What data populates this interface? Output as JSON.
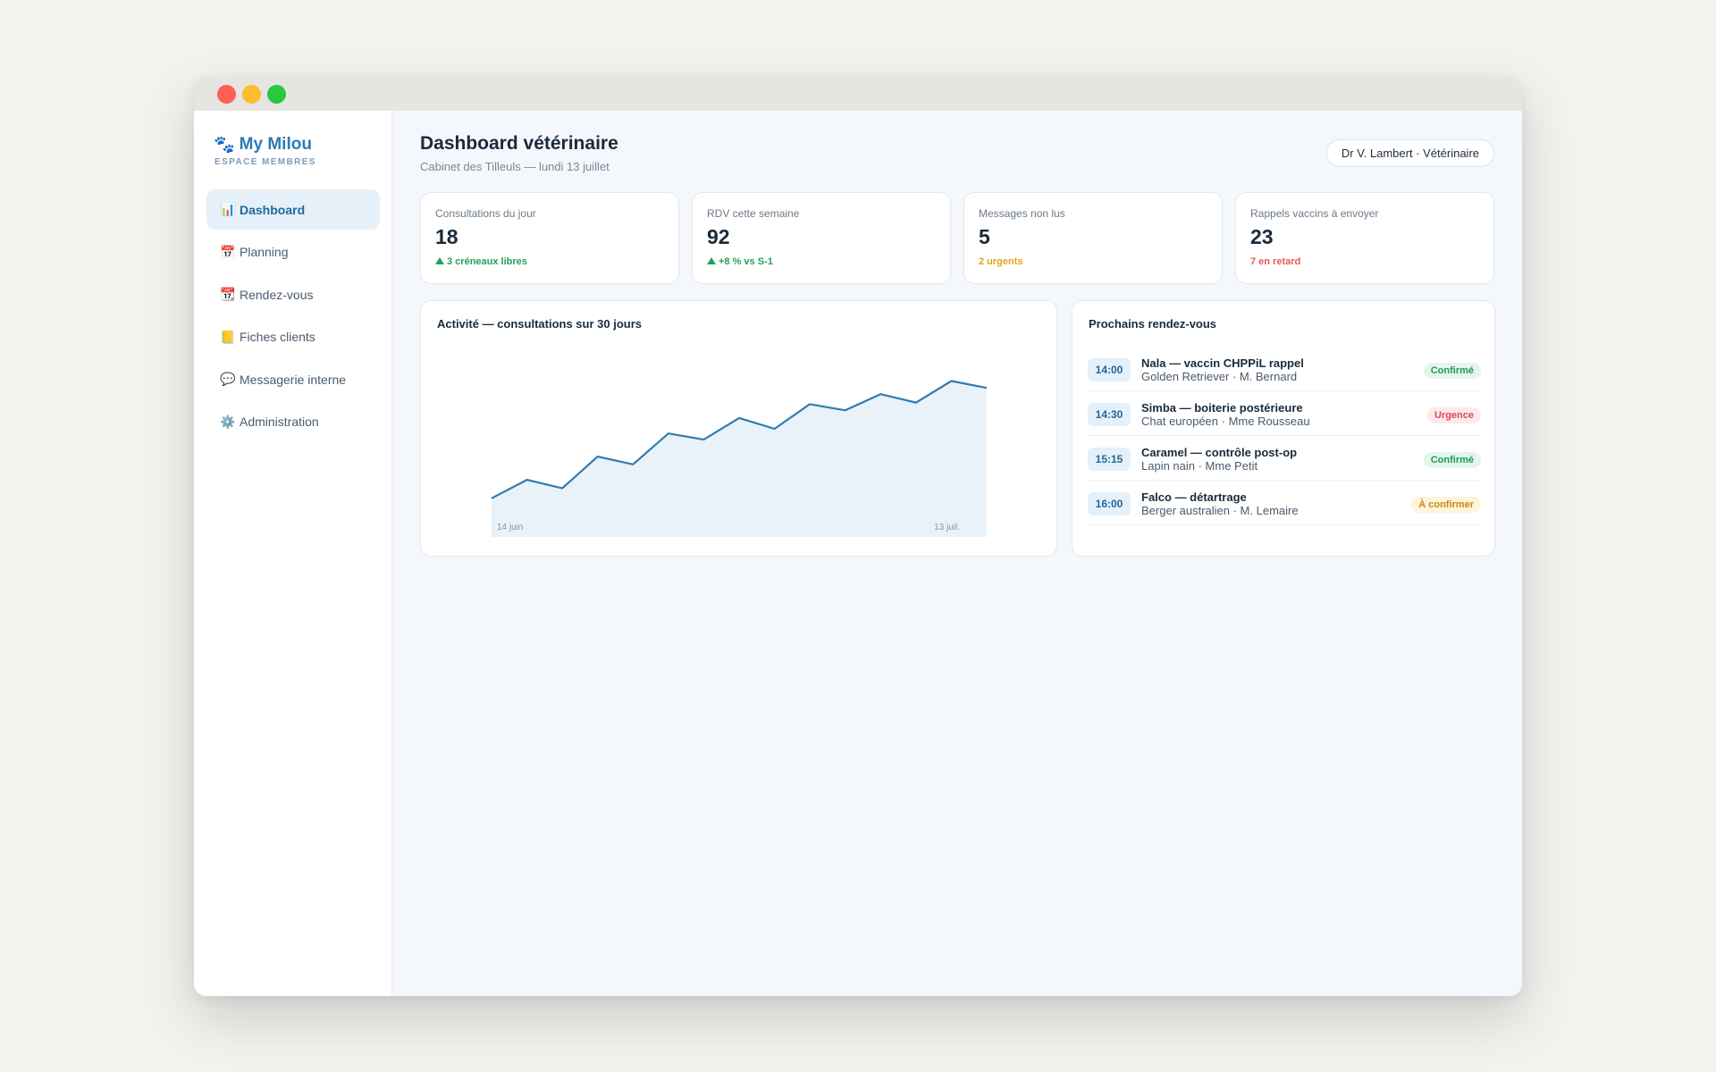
{
  "sidebar": {
    "brand": "My Milou",
    "brand_sub": "ESPACE MEMBRES",
    "items": [
      {
        "label": "Dashboard",
        "icon": "bar-chart-icon",
        "active": true
      },
      {
        "label": "Planning",
        "icon": "calendar-icon"
      },
      {
        "label": "Rendez-vous",
        "icon": "tear-off-calendar-icon"
      },
      {
        "label": "Fiches clients",
        "icon": "ledger-icon"
      },
      {
        "label": "Messagerie interne",
        "icon": "speech-bubble-icon"
      },
      {
        "label": "Administration",
        "icon": "gear-icon"
      }
    ]
  },
  "header": {
    "title": "Dashboard vétérinaire",
    "subtitle": "Cabinet des Tilleuls — lundi 13 juillet",
    "user": "Dr V. Lambert · Vétérinaire"
  },
  "stats": [
    {
      "label": "Consultations du jour",
      "value": "18",
      "note": "3 créneaux libres",
      "trend": "up",
      "color": "#22a05b"
    },
    {
      "label": "RDV cette semaine",
      "value": "92",
      "note": "+8 % vs S-1",
      "trend": "up",
      "color": "#22a05b"
    },
    {
      "label": "Messages non lus",
      "value": "5",
      "note": "2 urgents",
      "color": "#e3a21a"
    },
    {
      "label": "Rappels vaccins à envoyer",
      "value": "23",
      "note": "7 en retard",
      "color": "#e05a5a"
    }
  ],
  "activity": {
    "title": "Activité — consultations sur 30 jours",
    "x_start": "14 juin",
    "x_end": "13 juil.",
    "color": "#2e7cb2"
  },
  "chart_data": {
    "type": "area",
    "title": "Activité — consultations sur 30 jours",
    "x": [
      "14 juin",
      "",
      "",
      "",
      "",
      "",
      "",
      "",
      "",
      "",
      "",
      "",
      "",
      "",
      "13 juil."
    ],
    "values": [
      5,
      7.4,
      6.3,
      10.4,
      9.4,
      13.4,
      12.6,
      15.4,
      14,
      17.2,
      16.4,
      18.5,
      17.4,
      20.2,
      19.3
    ],
    "ylim": [
      0,
      25
    ],
    "grid": false,
    "xlabel": "",
    "ylabel": ""
  },
  "upcoming": {
    "title": "Prochains rendez-vous",
    "items": [
      {
        "time": "14:00",
        "title": "Nala — vaccin CHPPiL rappel",
        "sub": "Golden Retriever · M. Bernard",
        "status": "Confirmé",
        "kind": "ok"
      },
      {
        "time": "14:30",
        "title": "Simba — boiterie postérieure",
        "sub": "Chat européen · Mme Rousseau",
        "status": "Urgence",
        "kind": "urg"
      },
      {
        "time": "15:15",
        "title": "Caramel — contrôle post-op",
        "sub": "Lapin nain · Mme Petit",
        "status": "Confirmé",
        "kind": "ok"
      },
      {
        "time": "16:00",
        "title": "Falco — détartrage",
        "sub": "Berger australien · M. Lemaire",
        "status": "À confirmer",
        "kind": "pend"
      }
    ]
  }
}
